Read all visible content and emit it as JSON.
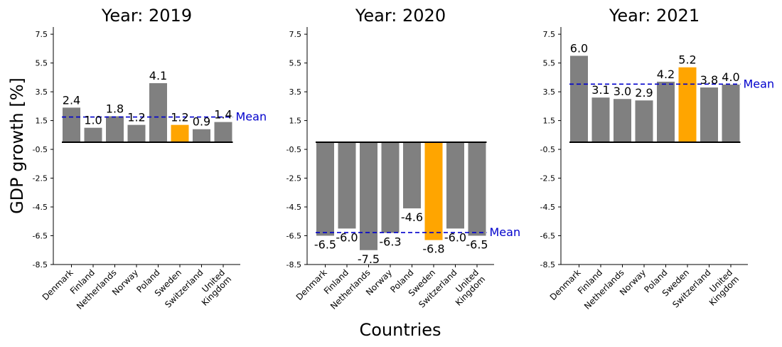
{
  "figure": {
    "ylabel": "GDP growth [%]",
    "xlabel": "Countries",
    "mean_label": "Mean"
  },
  "colors": {
    "bar_default": "#808080",
    "bar_highlight": "#FFA500",
    "mean_line": "#0000CC",
    "mean_text": "#0000CC",
    "zero_line": "#000000"
  },
  "chart_data": [
    {
      "type": "bar",
      "title": "Year: 2019",
      "categories": [
        "Denmark",
        "Finland",
        "Netherlands",
        "Norway",
        "Poland",
        "Sweden",
        "Switzerland",
        "United\nKingdom"
      ],
      "values": [
        2.4,
        1.0,
        1.8,
        1.2,
        4.1,
        1.2,
        0.9,
        1.4
      ],
      "value_labels": [
        "2.4",
        "1.0",
        "1.8",
        "1.2",
        "4.1",
        "1.2",
        "0.9",
        "1.4"
      ],
      "highlight": "Sweden",
      "mean": 1.75,
      "ylim": [
        -8.5,
        8.0
      ],
      "yticks": [
        "-8.5",
        "-6.5",
        "-4.5",
        "-2.5",
        "-0.5",
        "1.5",
        "3.5",
        "5.5",
        "7.5"
      ]
    },
    {
      "type": "bar",
      "title": "Year: 2020",
      "categories": [
        "Denmark",
        "Finland",
        "Netherlands",
        "Norway",
        "Poland",
        "Sweden",
        "Switzerland",
        "United\nKingdom"
      ],
      "values": [
        -6.5,
        -6.0,
        -7.5,
        -6.3,
        -4.6,
        -6.8,
        -6.0,
        -6.5
      ],
      "value_labels": [
        "-6.5",
        "-6.0",
        "-7.5",
        "-6.3",
        "-4.6",
        "-6.8",
        "-6.0",
        "-6.5"
      ],
      "highlight": "Sweden",
      "mean": -6.28,
      "ylim": [
        -8.5,
        8.0
      ],
      "yticks": [
        "-8.5",
        "-6.5",
        "-4.5",
        "-2.5",
        "-0.5",
        "1.5",
        "3.5",
        "5.5",
        "7.5"
      ]
    },
    {
      "type": "bar",
      "title": "Year: 2021",
      "categories": [
        "Denmark",
        "Finland",
        "Netherlands",
        "Norway",
        "Poland",
        "Sweden",
        "Switzerland",
        "United\nKingdom"
      ],
      "values": [
        6.0,
        3.1,
        3.0,
        2.9,
        4.2,
        5.2,
        3.8,
        4.0
      ],
      "value_labels": [
        "6.0",
        "3.1",
        "3.0",
        "2.9",
        "4.2",
        "5.2",
        "3.8",
        "4.0"
      ],
      "highlight": "Sweden",
      "mean": 4.03,
      "ylim": [
        -8.5,
        8.0
      ],
      "yticks": [
        "-8.5",
        "-6.5",
        "-4.5",
        "-2.5",
        "-0.5",
        "1.5",
        "3.5",
        "5.5",
        "7.5"
      ]
    }
  ]
}
